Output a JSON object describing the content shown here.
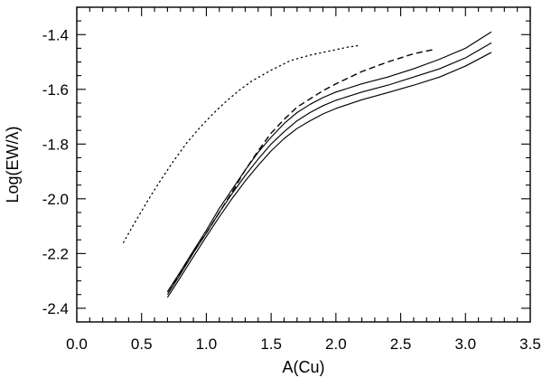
{
  "chart_data": {
    "type": "line",
    "title": "",
    "xlabel": "A(Cu)",
    "ylabel": "Log(EW/λ)",
    "xlim": [
      0.0,
      3.5
    ],
    "ylim": [
      -2.45,
      -1.3
    ],
    "xticks": [
      0.0,
      0.5,
      1.0,
      1.5,
      2.0,
      2.5,
      3.0,
      3.5
    ],
    "xtick_labels": [
      "0.0",
      "0.5",
      "1.0",
      "1.5",
      "2.0",
      "2.5",
      "3.0",
      "3.5"
    ],
    "x_minor_step": 0.1,
    "yticks": [
      -2.4,
      -2.2,
      -2.0,
      -1.8,
      -1.6,
      -1.4
    ],
    "ytick_labels": [
      "-2.4",
      "-2.2",
      "-2.0",
      "-1.8",
      "-1.6",
      "-1.4"
    ],
    "y_minor_step": 0.05,
    "grid": false,
    "legend": "none",
    "series": [
      {
        "style": "solid",
        "x": [
          0.7,
          0.8,
          0.9,
          1.0,
          1.1,
          1.2,
          1.3,
          1.4,
          1.5,
          1.6,
          1.7,
          1.8,
          1.9,
          2.0,
          2.2,
          2.4,
          2.6,
          2.8,
          3.0,
          3.2
        ],
        "y": [
          -2.34,
          -2.266,
          -2.19,
          -2.115,
          -2.035,
          -1.965,
          -1.895,
          -1.83,
          -1.775,
          -1.725,
          -1.685,
          -1.655,
          -1.63,
          -1.61,
          -1.58,
          -1.555,
          -1.525,
          -1.49,
          -1.45,
          -1.39
        ]
      },
      {
        "style": "solid",
        "x": [
          0.7,
          0.8,
          0.9,
          1.0,
          1.1,
          1.2,
          1.3,
          1.4,
          1.5,
          1.6,
          1.7,
          1.8,
          1.9,
          2.0,
          2.2,
          2.4,
          2.6,
          2.8,
          3.0,
          3.2
        ],
        "y": [
          -2.35,
          -2.275,
          -2.198,
          -2.125,
          -2.05,
          -1.98,
          -1.915,
          -1.855,
          -1.8,
          -1.755,
          -1.715,
          -1.685,
          -1.66,
          -1.64,
          -1.61,
          -1.585,
          -1.555,
          -1.525,
          -1.485,
          -1.43
        ]
      },
      {
        "style": "solid",
        "x": [
          0.7,
          0.8,
          0.9,
          1.0,
          1.1,
          1.2,
          1.3,
          1.4,
          1.5,
          1.6,
          1.7,
          1.8,
          1.9,
          2.0,
          2.2,
          2.4,
          2.6,
          2.8,
          3.0,
          3.2
        ],
        "y": [
          -2.36,
          -2.287,
          -2.212,
          -2.138,
          -2.066,
          -1.998,
          -1.935,
          -1.878,
          -1.825,
          -1.78,
          -1.743,
          -1.715,
          -1.69,
          -1.67,
          -1.638,
          -1.612,
          -1.585,
          -1.555,
          -1.515,
          -1.465
        ]
      },
      {
        "style": "dashed",
        "x": [
          0.7,
          0.8,
          0.9,
          1.0,
          1.1,
          1.2,
          1.3,
          1.4,
          1.5,
          1.6,
          1.7,
          1.8,
          1.9,
          2.0,
          2.2,
          2.4,
          2.6,
          2.75
        ],
        "y": [
          -2.34,
          -2.27,
          -2.195,
          -2.125,
          -2.05,
          -1.975,
          -1.895,
          -1.825,
          -1.76,
          -1.71,
          -1.665,
          -1.635,
          -1.605,
          -1.58,
          -1.535,
          -1.5,
          -1.47,
          -1.455
        ]
      },
      {
        "style": "dotted",
        "x": [
          0.36,
          0.45,
          0.55,
          0.65,
          0.75,
          0.85,
          0.95,
          1.05,
          1.15,
          1.25,
          1.35,
          1.5,
          1.65,
          1.8,
          1.95,
          2.1,
          2.18
        ],
        "y": [
          -2.16,
          -2.085,
          -2.005,
          -1.93,
          -1.86,
          -1.795,
          -1.74,
          -1.69,
          -1.645,
          -1.605,
          -1.57,
          -1.53,
          -1.495,
          -1.475,
          -1.46,
          -1.445,
          -1.44
        ]
      }
    ]
  }
}
